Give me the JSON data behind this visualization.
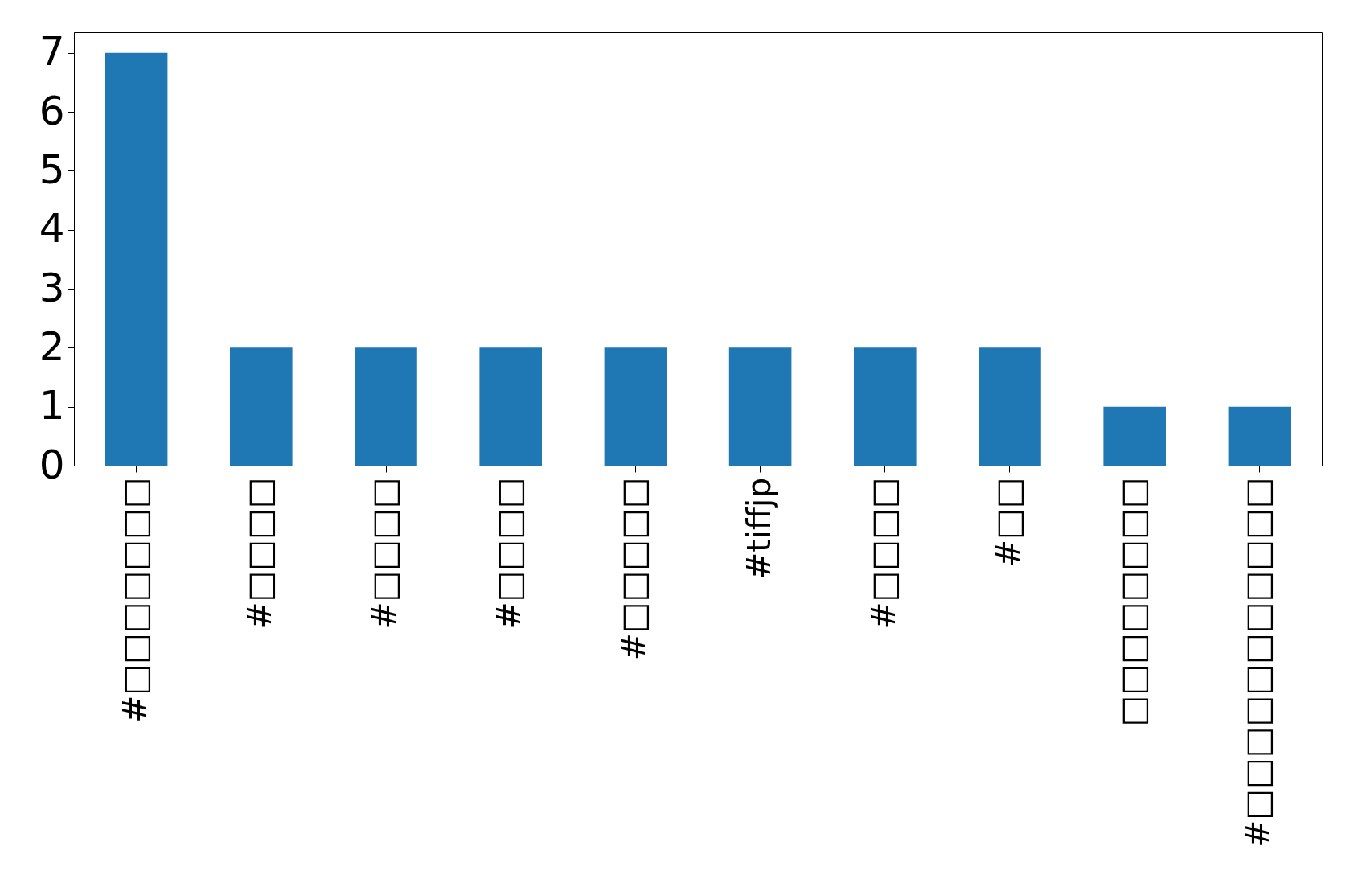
{
  "chart_data": {
    "type": "bar",
    "categories": [
      "#□□□□□□□",
      "#□□□□",
      "#□□□□",
      "#□□□□",
      "#□□□□□",
      "#tiffjp",
      "#□□□□",
      "#□□",
      "□□□□□□□□",
      "#□□□□□□□□□□□"
    ],
    "values": [
      7,
      2,
      2,
      2,
      2,
      2,
      2,
      2,
      1,
      1
    ],
    "color": "#1f77b4",
    "ylim": [
      0,
      7.35
    ],
    "yticks": [
      0,
      1,
      2,
      3,
      4,
      5,
      6,
      7
    ],
    "grid": false
  }
}
